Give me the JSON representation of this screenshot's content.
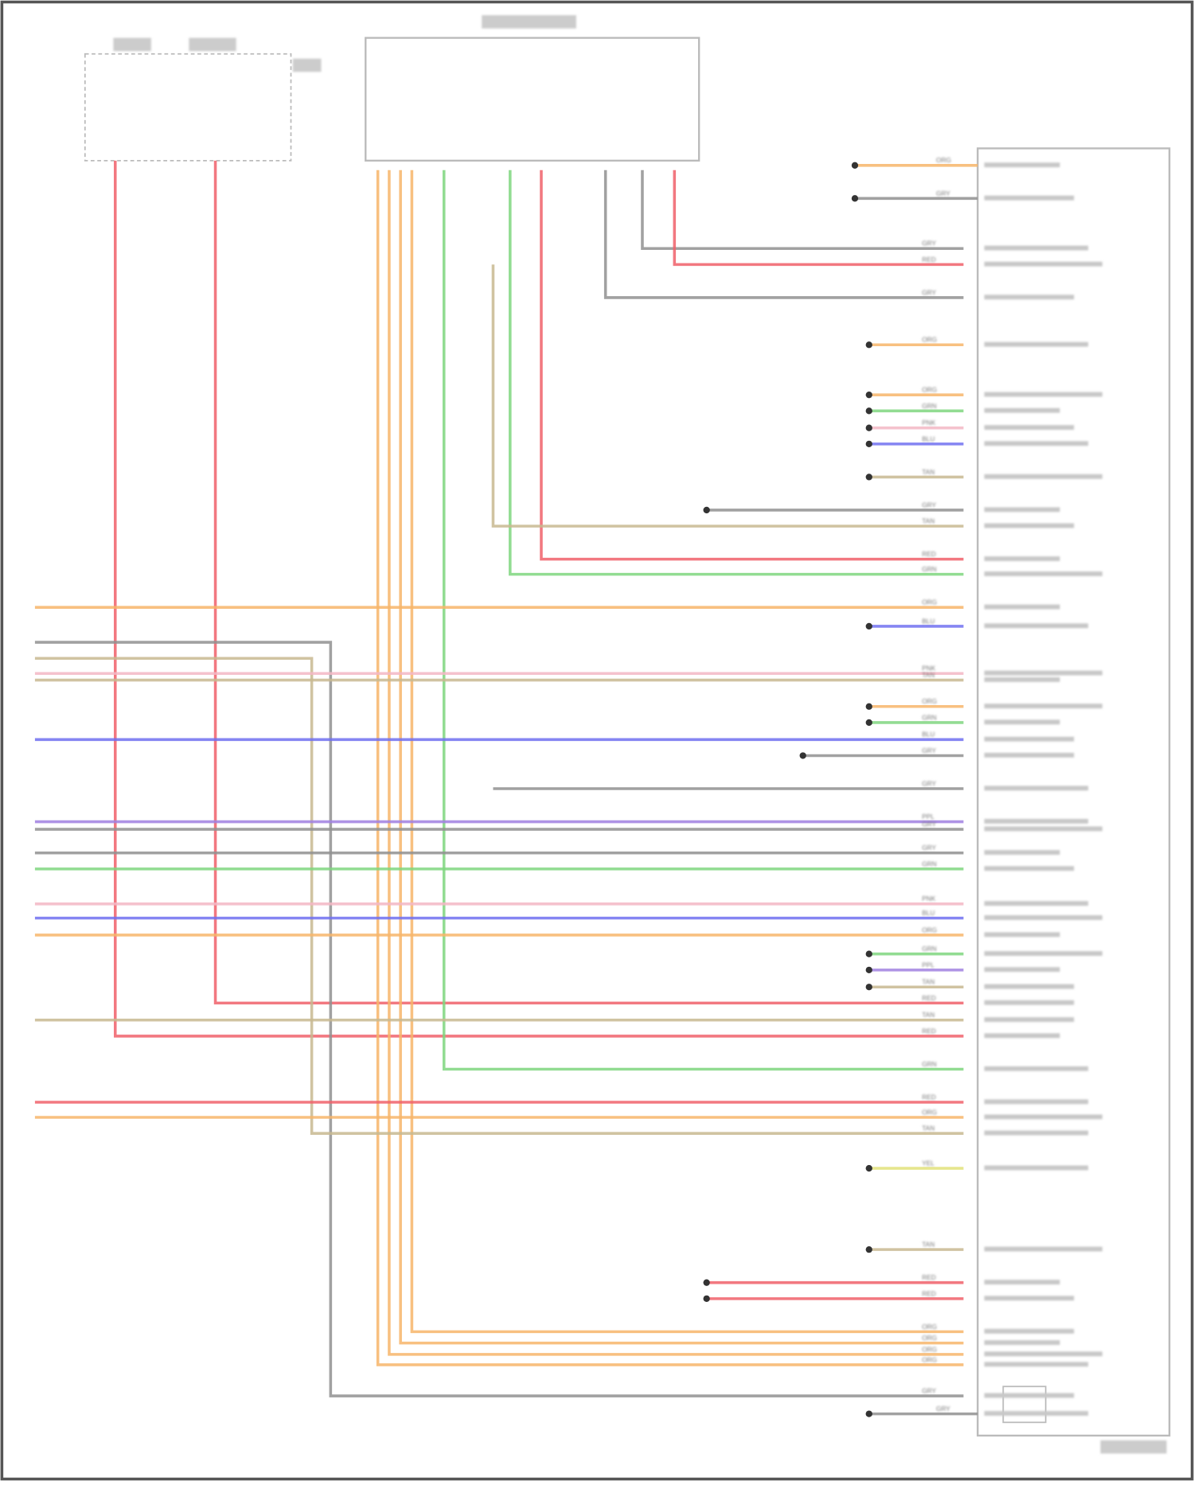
{
  "palette": {
    "ORG": "#f7b56a",
    "RED": "#f0606a",
    "GRN": "#7fd67f",
    "BLU": "#7070f0",
    "GRY": "#909090",
    "PNK": "#f3b7c4",
    "TAN": "#c8b890",
    "PPL": "#a080e0",
    "YEL": "#e2e27a"
  },
  "wires": [
    {
      "code": "RED"
    },
    {
      "code": "RED"
    },
    {
      "code": "ORG"
    },
    {
      "code": "ORG"
    },
    {
      "code": "ORG"
    },
    {
      "code": "ORG"
    },
    {
      "code": "GRN"
    },
    {
      "code": "GRN"
    },
    {
      "code": "RED"
    },
    {
      "code": "GRY"
    },
    {
      "code": "GRY"
    },
    {
      "code": "RED"
    },
    {
      "code": "ORG"
    },
    {
      "code": "GRY"
    },
    {
      "code": "TAN"
    },
    {
      "code": "PNK"
    },
    {
      "code": "TAN"
    },
    {
      "code": "BLU"
    },
    {
      "code": "PPL"
    },
    {
      "code": "GRY"
    },
    {
      "code": "GRY"
    },
    {
      "code": "GRN"
    },
    {
      "code": "PNK"
    },
    {
      "code": "BLU"
    },
    {
      "code": "ORG"
    },
    {
      "code": "TAN"
    },
    {
      "code": "RED"
    },
    {
      "code": "ORG"
    },
    {
      "code": "ORG"
    },
    {
      "code": "GRY"
    },
    {
      "code": "ORG"
    },
    {
      "code": "ORG"
    },
    {
      "code": "GRN"
    },
    {
      "code": "PNK"
    },
    {
      "code": "BLU"
    },
    {
      "code": "TAN"
    },
    {
      "code": "GRY"
    },
    {
      "code": "TAN"
    },
    {
      "code": "BLU"
    },
    {
      "code": "ORG"
    },
    {
      "code": "GRN"
    },
    {
      "code": "GRY"
    },
    {
      "code": "GRY"
    },
    {
      "code": "GRN"
    },
    {
      "code": "PPL"
    },
    {
      "code": "TAN"
    },
    {
      "code": "YEL"
    },
    {
      "code": "TAN"
    },
    {
      "code": "RED"
    },
    {
      "code": "RED"
    },
    {
      "code": "GRY"
    }
  ]
}
